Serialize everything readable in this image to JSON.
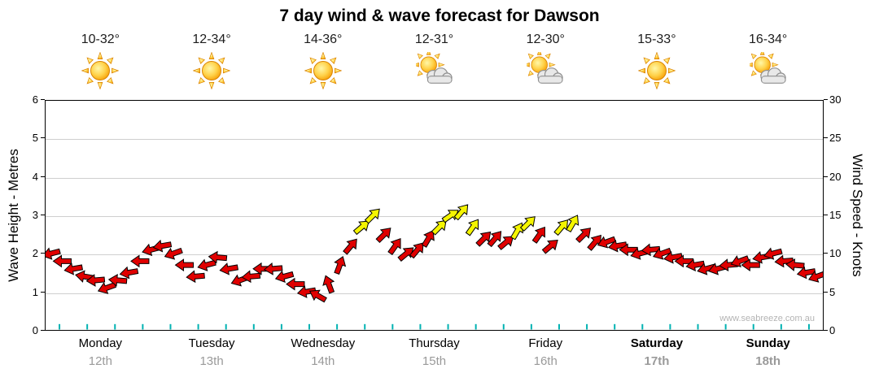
{
  "title": "7 day wind & wave forecast for Dawson",
  "forecast_days": [
    {
      "day": "Monday",
      "date": "12th",
      "temp": "10-32°",
      "icon": "sunny",
      "bold": false
    },
    {
      "day": "Tuesday",
      "date": "13th",
      "temp": "12-34°",
      "icon": "sunny",
      "bold": false
    },
    {
      "day": "Wednesday",
      "date": "14th",
      "temp": "14-36°",
      "icon": "sunny",
      "bold": false
    },
    {
      "day": "Thursday",
      "date": "15th",
      "temp": "12-31°",
      "icon": "partly-cloudy",
      "bold": false
    },
    {
      "day": "Friday",
      "date": "16th",
      "temp": "12-30°",
      "icon": "partly-cloudy",
      "bold": false
    },
    {
      "day": "Saturday",
      "date": "17th",
      "temp": "15-33°",
      "icon": "sunny",
      "bold": true
    },
    {
      "day": "Sunday",
      "date": "18th",
      "temp": "16-34°",
      "icon": "partly-cloudy",
      "bold": true
    }
  ],
  "chart_data": {
    "type": "scatter",
    "subtype": "wind-direction-arrows",
    "ylabel_left": "Wave Height - Metres",
    "ylabel_right": "Wind Speed - Knots",
    "ylim_left": [
      0,
      6
    ],
    "ylim_right": [
      0,
      30
    ],
    "yticks_left": [
      "0",
      "1",
      "2",
      "3",
      "4",
      "5",
      "6"
    ],
    "yticks_right": [
      "0",
      "5",
      "10",
      "15",
      "20",
      "25",
      "30"
    ],
    "x_categories": [
      "Monday 12th",
      "Tuesday 13th",
      "Wednesday 14th",
      "Thursday 15th",
      "Friday 16th",
      "Saturday 17th",
      "Sunday 18th"
    ],
    "points_per_day": 10,
    "wind_knots": [
      10,
      9,
      8,
      7,
      6.5,
      5.5,
      6.5,
      7.5,
      9,
      10.5,
      11,
      10,
      8.5,
      7,
      8.5,
      9.5,
      8,
      6.5,
      7,
      8,
      8,
      7,
      6,
      5,
      4.5,
      6,
      8.5,
      11,
      13.5,
      15,
      12.5,
      11,
      10,
      10.5,
      12,
      13.5,
      15,
      15.5,
      13.5,
      12,
      12,
      11.5,
      13,
      14,
      12.5,
      11,
      13.5,
      14,
      12.5,
      11.5,
      11.5,
      11,
      10.5,
      10,
      10.5,
      10,
      9.5,
      9,
      8.5,
      8,
      8,
      8.5,
      9,
      8.5,
      9.5,
      10,
      9,
      8.5,
      7.5,
      7
    ],
    "arrow_dirs_deg": [
      165,
      180,
      170,
      190,
      175,
      160,
      185,
      170,
      180,
      165,
      170,
      160,
      180,
      175,
      165,
      185,
      170,
      160,
      175,
      180,
      175,
      165,
      180,
      170,
      210,
      250,
      290,
      310,
      320,
      315,
      315,
      305,
      320,
      310,
      300,
      315,
      325,
      310,
      305,
      315,
      310,
      320,
      300,
      315,
      305,
      320,
      310,
      300,
      315,
      310,
      160,
      170,
      180,
      165,
      175,
      160,
      170,
      180,
      170,
      165,
      165,
      175,
      160,
      180,
      170,
      165,
      175,
      185,
      170,
      160
    ],
    "wave_height_m": [
      0.1,
      0.1,
      0.1,
      0.1,
      0.1,
      0.1,
      0.1,
      0.1,
      0.1,
      0.1,
      0.1,
      0.1,
      0.1,
      0.1,
      0.1,
      0.1,
      0.1,
      0.1,
      0.1,
      0.1,
      0.1,
      0.1,
      0.1,
      0.1,
      0.1,
      0.1,
      0.1,
      0.1
    ],
    "strong_threshold_knots": 13,
    "colors": {
      "light_wind": "#e00000",
      "strong_wind": "#f5f500",
      "arrow_outline": "#000000",
      "wave": "#00b2b2",
      "gridline": "#cfcfcf"
    },
    "watermark": "www.seabreeze.com.au"
  }
}
